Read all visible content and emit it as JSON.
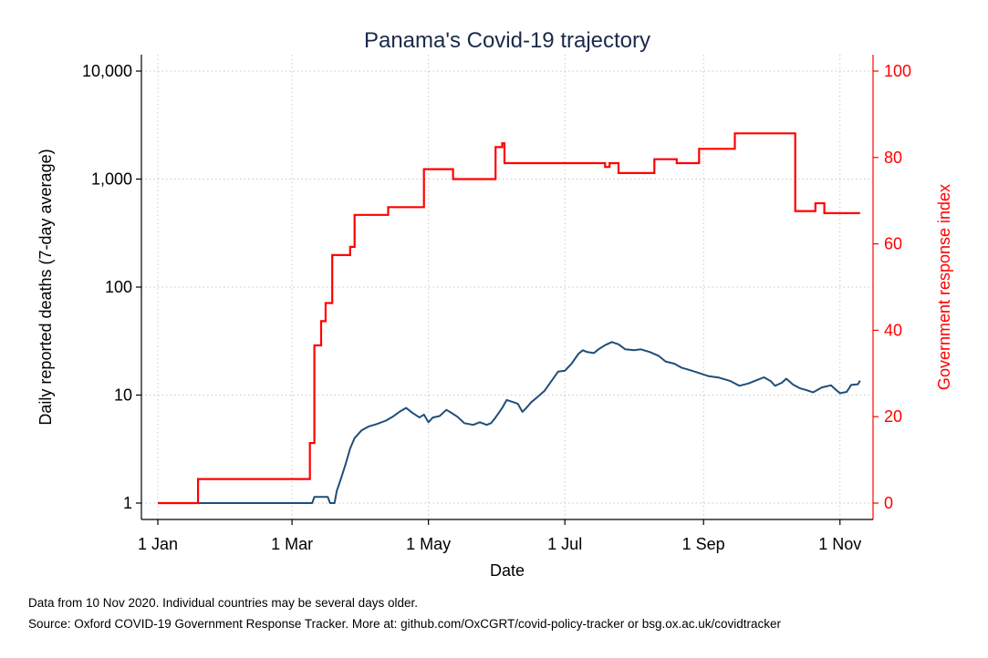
{
  "chart_data": {
    "type": "line",
    "title": "Panama's Covid-19 trajectory",
    "xlabel": "Date",
    "ylabel_left": "Daily reported deaths (7-day average)",
    "ylabel_right": "Government response index",
    "x_ticks": [
      "1 Jan",
      "1 Mar",
      "1 May",
      "1 Jul",
      "1 Sep",
      "1 Nov"
    ],
    "x_tick_dates": [
      "2020-01-01",
      "2020-03-01",
      "2020-05-01",
      "2020-07-01",
      "2020-09-01",
      "2020-11-01"
    ],
    "y_left_scale": "log",
    "y_left_ticks": [
      "1",
      "10",
      "100",
      "1,000",
      "10,000"
    ],
    "y_left_tick_values": [
      1,
      10,
      100,
      1000,
      10000
    ],
    "y_right_ticks": [
      "0",
      "20",
      "40",
      "60",
      "80",
      "100"
    ],
    "y_right_tick_values": [
      0,
      20,
      40,
      60,
      80,
      100
    ],
    "ylim_right": [
      0,
      100
    ],
    "xlim": [
      "2020-01-01",
      "2020-11-10"
    ],
    "grid": true,
    "colors": {
      "deaths": "#1f4e79",
      "response": "#ff0000",
      "grid": "#c8c8c8"
    },
    "series": [
      {
        "axis": "left",
        "points": [
          [
            "2020-01-01",
            1
          ],
          [
            "2020-03-10",
            1
          ],
          [
            "2020-03-11",
            1.14
          ],
          [
            "2020-03-17",
            1.14
          ],
          [
            "2020-03-18",
            1
          ],
          [
            "2020-03-20",
            1
          ],
          [
            "2020-03-21",
            1.29
          ],
          [
            "2020-03-23",
            1.71
          ],
          [
            "2020-03-25",
            2.3
          ],
          [
            "2020-03-27",
            3.2
          ],
          [
            "2020-03-29",
            4
          ],
          [
            "2020-04-01",
            4.7
          ],
          [
            "2020-04-04",
            5.1
          ],
          [
            "2020-04-08",
            5.4
          ],
          [
            "2020-04-12",
            5.8
          ],
          [
            "2020-04-15",
            6.3
          ],
          [
            "2020-04-18",
            7
          ],
          [
            "2020-04-21",
            7.6
          ],
          [
            "2020-04-24",
            6.8
          ],
          [
            "2020-04-27",
            6.2
          ],
          [
            "2020-04-29",
            6.6
          ],
          [
            "2020-05-01",
            5.6
          ],
          [
            "2020-05-03",
            6.2
          ],
          [
            "2020-05-06",
            6.4
          ],
          [
            "2020-05-09",
            7.3
          ],
          [
            "2020-05-11",
            6.9
          ],
          [
            "2020-05-14",
            6.3
          ],
          [
            "2020-05-17",
            5.5
          ],
          [
            "2020-05-21",
            5.3
          ],
          [
            "2020-05-24",
            5.6
          ],
          [
            "2020-05-27",
            5.3
          ],
          [
            "2020-05-29",
            5.5
          ],
          [
            "2020-05-31",
            6.2
          ],
          [
            "2020-06-03",
            7.6
          ],
          [
            "2020-06-05",
            9
          ],
          [
            "2020-06-08",
            8.6
          ],
          [
            "2020-06-10",
            8.3
          ],
          [
            "2020-06-12",
            7
          ],
          [
            "2020-06-14",
            7.7
          ],
          [
            "2020-06-16",
            8.6
          ],
          [
            "2020-06-19",
            9.7
          ],
          [
            "2020-06-22",
            11
          ],
          [
            "2020-06-25",
            13.5
          ],
          [
            "2020-06-28",
            16.5
          ],
          [
            "2020-07-01",
            16.8
          ],
          [
            "2020-07-04",
            19.5
          ],
          [
            "2020-07-07",
            24
          ],
          [
            "2020-07-09",
            26
          ],
          [
            "2020-07-11",
            25
          ],
          [
            "2020-07-14",
            24.5
          ],
          [
            "2020-07-16",
            26.5
          ],
          [
            "2020-07-19",
            29
          ],
          [
            "2020-07-22",
            31
          ],
          [
            "2020-07-25",
            29.5
          ],
          [
            "2020-07-28",
            26.5
          ],
          [
            "2020-08-01",
            26
          ],
          [
            "2020-08-04",
            26.5
          ],
          [
            "2020-08-08",
            25
          ],
          [
            "2020-08-12",
            23
          ],
          [
            "2020-08-15",
            20.5
          ],
          [
            "2020-08-19",
            19.5
          ],
          [
            "2020-08-22",
            18
          ],
          [
            "2020-08-26",
            17
          ],
          [
            "2020-08-30",
            16
          ],
          [
            "2020-09-03",
            15
          ],
          [
            "2020-09-08",
            14.5
          ],
          [
            "2020-09-13",
            13.5
          ],
          [
            "2020-09-17",
            12.2
          ],
          [
            "2020-09-21",
            12.8
          ],
          [
            "2020-09-25",
            13.8
          ],
          [
            "2020-09-28",
            14.6
          ],
          [
            "2020-10-01",
            13.5
          ],
          [
            "2020-10-03",
            12.2
          ],
          [
            "2020-10-06",
            13
          ],
          [
            "2020-10-08",
            14.2
          ],
          [
            "2020-10-11",
            12.5
          ],
          [
            "2020-10-14",
            11.6
          ],
          [
            "2020-10-17",
            11.1
          ],
          [
            "2020-10-20",
            10.6
          ],
          [
            "2020-10-24",
            11.8
          ],
          [
            "2020-10-28",
            12.3
          ],
          [
            "2020-10-30",
            11.3
          ],
          [
            "2020-11-01",
            10.4
          ],
          [
            "2020-11-04",
            10.7
          ],
          [
            "2020-11-06",
            12.4
          ],
          [
            "2020-11-09",
            12.6
          ],
          [
            "2020-11-10",
            13.6
          ]
        ]
      },
      {
        "axis": "right",
        "step": true,
        "points": [
          [
            "2020-01-01",
            0
          ],
          [
            "2020-01-19",
            5.56
          ],
          [
            "2020-03-09",
            13.9
          ],
          [
            "2020-03-11",
            36.5
          ],
          [
            "2020-03-14",
            42.1
          ],
          [
            "2020-03-16",
            46.3
          ],
          [
            "2020-03-19",
            57.4
          ],
          [
            "2020-03-27",
            59.3
          ],
          [
            "2020-03-29",
            66.7
          ],
          [
            "2020-04-13",
            68.5
          ],
          [
            "2020-04-29",
            77.3
          ],
          [
            "2020-05-12",
            75
          ],
          [
            "2020-05-31",
            82.4
          ],
          [
            "2020-06-03",
            83.3
          ],
          [
            "2020-06-04",
            78.7
          ],
          [
            "2020-07-19",
            77.8
          ],
          [
            "2020-07-21",
            78.7
          ],
          [
            "2020-07-25",
            76.4
          ],
          [
            "2020-08-10",
            79.6
          ],
          [
            "2020-08-20",
            78.7
          ],
          [
            "2020-08-30",
            82
          ],
          [
            "2020-09-15",
            85.6
          ],
          [
            "2020-10-12",
            67.6
          ],
          [
            "2020-10-21",
            69.4
          ],
          [
            "2020-10-25",
            67.1
          ],
          [
            "2020-11-10",
            67.1
          ]
        ]
      }
    ]
  },
  "footnotes": [
    "Data from 10 Nov 2020. Individual countries may be several days older.",
    "Source: Oxford COVID-19 Government Response Tracker. More at: github.com/OxCGRT/covid-policy-tracker or bsg.ox.ac.uk/covidtracker"
  ]
}
